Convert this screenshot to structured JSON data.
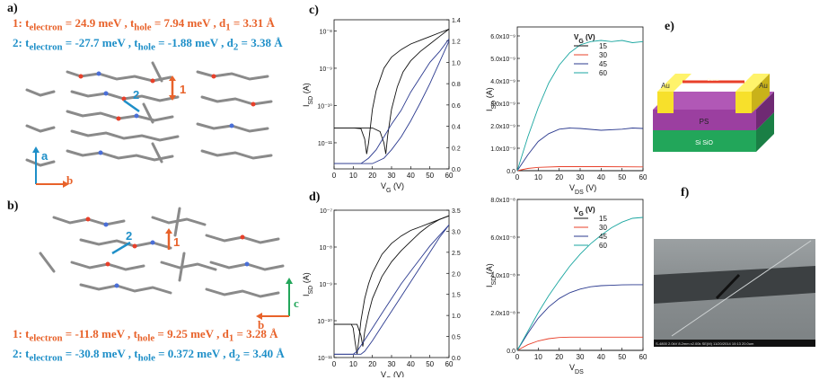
{
  "colors": {
    "orange": "#e8622a",
    "blue": "#1e8fc8",
    "teal": "#1aa6a0",
    "navy": "#2b3a8f",
    "red": "#e8402a",
    "black": "#111111",
    "purple": "#9b3fa0",
    "gold": "#f7e02b",
    "green": "#22a65a"
  },
  "panel_a": {
    "letter": "a)",
    "line1": {
      "num": "1:",
      "t_electron": "t",
      "sub_e": "electron",
      "val_e": "=  24.9 meV , ",
      "t_hole": "t",
      "sub_h": "hole",
      "val_h": "= 7.94 meV , d",
      "sub_d": "1",
      "val_d": "= 3.31 Å"
    },
    "line2": {
      "num": "2:",
      "t_electron": "t",
      "sub_e": "electron",
      "val_e": "= -27.7 meV , ",
      "t_hole": "t",
      "sub_h": "hole",
      "val_h": "= -1.88 meV , d",
      "sub_d": "2",
      "val_d": "= 3.38 Å"
    },
    "axis_a": "a",
    "axis_b": "b",
    "dimer1": "1",
    "dimer2": "2"
  },
  "panel_b": {
    "letter": "b)",
    "line1": {
      "num": "1:",
      "t_electron": "t",
      "sub_e": "electron",
      "val_e": "= -11.8 meV , ",
      "t_hole": "t",
      "sub_h": "hole",
      "val_h": "= 9.25 meV , d",
      "sub_d": "1",
      "val_d": "= 3.28 Å"
    },
    "line2": {
      "num": "2:",
      "t_electron": "t",
      "sub_e": "electron",
      "val_e": "= -30.8 meV , ",
      "t_hole": "t",
      "sub_h": "hole",
      "val_h": "= 0.372 meV , d",
      "sub_d": "2",
      "val_d": "= 3.40 Å"
    },
    "axis_b": "b",
    "axis_c": "c",
    "dimer1": "1",
    "dimer2": "2"
  },
  "panel_c_letter": "c)",
  "panel_d_letter": "d)",
  "panel_e_letter": "e)",
  "panel_f_letter": "f)",
  "device": {
    "electrode_left": "Au",
    "electrode_right": "Au",
    "dielectric": "PS",
    "substrate": "Si SiO",
    "channel_label": "Channel"
  },
  "sem_caption": "S-4800 2.0kV 8.2mm x2.00k SE(M) 11/20/2014 10:13        20.0um",
  "chart_data": [
    {
      "id": "c",
      "type": "line",
      "xlabel": "V",
      "xlabel_sub": "G",
      "xlabel_unit": " (V)",
      "ylabel": "I",
      "ylabel_sub": "SD",
      "ylabel_unit": " (A)",
      "y2label": "I",
      "y2label_sub": "SD",
      "y2label_sup": "1/2",
      "y2label_unit": " (10⁻³ A¹ᐟ²)",
      "xlim": [
        0,
        60
      ],
      "xticks": [
        "0",
        "10",
        "20",
        "30",
        "40",
        "50",
        "60"
      ],
      "ylog": true,
      "ylim_log": [
        -11.7,
        -7.7
      ],
      "yticks": [
        {
          "v": -8,
          "t": "10⁻⁸"
        },
        {
          "v": -9,
          "t": "10⁻⁹"
        },
        {
          "v": -10,
          "t": "10⁻¹⁰"
        },
        {
          "v": -11,
          "t": "10⁻¹¹"
        }
      ],
      "y2lim": [
        0,
        1.4
      ],
      "y2ticks": [
        "0.0",
        "0.2",
        "0.4",
        "0.6",
        "0.8",
        "1.0",
        "1.2",
        "1.4"
      ],
      "series": [
        {
          "color": "black",
          "axis": "left",
          "x": [
            0,
            10,
            14,
            16,
            17,
            18,
            20,
            22,
            26,
            30,
            35,
            40,
            45,
            50,
            55,
            60
          ],
          "y": [
            -10.6,
            -10.6,
            -10.62,
            -10.9,
            -11.3,
            -11.0,
            -10.1,
            -9.6,
            -9.0,
            -8.7,
            -8.5,
            -8.35,
            -8.25,
            -8.15,
            -8.05,
            -7.95
          ]
        },
        {
          "color": "black",
          "axis": "left",
          "x": [
            0,
            10,
            20,
            24,
            26,
            27,
            28,
            30,
            33,
            36,
            40,
            45,
            50,
            55,
            60
          ],
          "y": [
            -10.6,
            -10.6,
            -10.6,
            -10.7,
            -11.0,
            -11.3,
            -10.8,
            -10.1,
            -9.5,
            -9.1,
            -8.8,
            -8.55,
            -8.35,
            -8.15,
            -7.95
          ]
        },
        {
          "color": "navy",
          "axis": "right",
          "x": [
            0,
            14,
            18,
            22,
            26,
            30,
            35,
            40,
            45,
            50,
            55,
            60
          ],
          "y": [
            0.05,
            0.05,
            0.1,
            0.18,
            0.3,
            0.42,
            0.55,
            0.72,
            0.86,
            1.0,
            1.1,
            1.22
          ]
        },
        {
          "color": "navy",
          "axis": "right",
          "x": [
            0,
            20,
            26,
            30,
            35,
            40,
            45,
            50,
            55,
            60
          ],
          "y": [
            0.05,
            0.05,
            0.1,
            0.18,
            0.3,
            0.45,
            0.62,
            0.8,
            1.0,
            1.2
          ]
        }
      ]
    },
    {
      "id": "c_output",
      "type": "line",
      "xlabel": "V",
      "xlabel_sub": "DS",
      "xlabel_unit": " (V)",
      "ylabel": "I",
      "ylabel_sub": "SD",
      "ylabel_unit": " (A)",
      "xlim": [
        0,
        60
      ],
      "xticks": [
        "0",
        "10",
        "20",
        "30",
        "40",
        "50",
        "60"
      ],
      "ylim": [
        0,
        6.4e-09
      ],
      "yticks": [
        "0.0",
        "1.0x10⁻⁹",
        "2.0x10⁻⁹",
        "3.0x10⁻⁹",
        "4.0x10⁻⁹",
        "5.0x10⁻⁹",
        "6.0x10⁻⁹"
      ],
      "legend_title": "V",
      "legend_title_sub": "G",
      "legend_title_unit": " (V)",
      "series": [
        {
          "name": "15",
          "color": "black",
          "x": [
            0,
            20,
            40,
            60
          ],
          "y": [
            0,
            0,
            0,
            0
          ]
        },
        {
          "name": "30",
          "color": "red",
          "x": [
            0,
            5,
            10,
            20,
            40,
            60
          ],
          "y": [
            0,
            1e-10,
            1.5e-10,
            1.8e-10,
            1.8e-10,
            1.7e-10
          ]
        },
        {
          "name": "45",
          "color": "navy",
          "x": [
            0,
            5,
            10,
            15,
            20,
            25,
            30,
            40,
            50,
            55,
            60
          ],
          "y": [
            0,
            7e-10,
            1.3e-09,
            1.65e-09,
            1.85e-09,
            1.9e-09,
            1.88e-09,
            1.8e-09,
            1.85e-09,
            1.9e-09,
            1.88e-09
          ]
        },
        {
          "name": "60",
          "color": "teal",
          "x": [
            0,
            5,
            10,
            15,
            20,
            25,
            30,
            35,
            40,
            45,
            50,
            55,
            60
          ],
          "y": [
            0,
            1.5e-09,
            2.8e-09,
            3.9e-09,
            4.7e-09,
            5.25e-09,
            5.6e-09,
            5.75e-09,
            5.8e-09,
            5.75e-09,
            5.8e-09,
            5.7e-09,
            5.75e-09
          ]
        }
      ]
    },
    {
      "id": "d",
      "type": "line",
      "xlabel": "V",
      "xlabel_sub": "G",
      "xlabel_unit": " (V)",
      "ylabel": "I",
      "ylabel_sub": "SD",
      "ylabel_unit": " (A)",
      "y2label": "I",
      "y2label_sub": "SD",
      "y2label_sup": "1/2",
      "y2label_unit": " (10⁻⁴ A¹ᐟ²)",
      "xlim": [
        0,
        60
      ],
      "xticks": [
        "0",
        "10",
        "20",
        "30",
        "40",
        "50",
        "60"
      ],
      "ylog": true,
      "ylim_log": [
        -11,
        -7
      ],
      "yticks": [
        {
          "v": -7,
          "t": "10⁻⁷"
        },
        {
          "v": -8,
          "t": "10⁻⁸"
        },
        {
          "v": -9,
          "t": "10⁻⁹"
        },
        {
          "v": -10,
          "t": "10⁻¹⁰"
        },
        {
          "v": -11,
          "t": "10⁻¹¹"
        }
      ],
      "y2lim": [
        0,
        3.5
      ],
      "y2ticks": [
        "0.0",
        "0.5",
        "1.0",
        "1.5",
        "2.0",
        "2.5",
        "3.0",
        "3.5"
      ],
      "series": [
        {
          "color": "black",
          "axis": "left",
          "x": [
            0,
            9,
            10,
            11,
            12,
            13,
            14,
            16,
            18,
            20,
            25,
            30,
            35,
            40,
            45,
            50,
            55,
            60
          ],
          "y": [
            -10.1,
            -10.1,
            -10.2,
            -10.6,
            -10.9,
            -10.5,
            -10.0,
            -9.4,
            -9.0,
            -8.7,
            -8.2,
            -7.9,
            -7.7,
            -7.55,
            -7.45,
            -7.35,
            -7.25,
            -7.15
          ]
        },
        {
          "color": "black",
          "axis": "left",
          "x": [
            0,
            12,
            14,
            15,
            16,
            18,
            20,
            25,
            30,
            35,
            40,
            45,
            50,
            55,
            60
          ],
          "y": [
            -10.1,
            -10.1,
            -10.4,
            -10.7,
            -10.3,
            -9.8,
            -9.4,
            -8.8,
            -8.4,
            -8.1,
            -7.85,
            -7.6,
            -7.4,
            -7.25,
            -7.15
          ]
        },
        {
          "color": "navy",
          "axis": "right",
          "x": [
            0,
            10,
            12,
            15,
            20,
            25,
            30,
            35,
            40,
            45,
            50,
            55,
            60
          ],
          "y": [
            0.08,
            0.08,
            0.15,
            0.35,
            0.7,
            1.05,
            1.4,
            1.75,
            2.05,
            2.35,
            2.65,
            2.9,
            3.15
          ]
        },
        {
          "color": "navy",
          "axis": "right",
          "x": [
            0,
            14,
            16,
            20,
            25,
            30,
            35,
            40,
            45,
            50,
            55,
            60
          ],
          "y": [
            0.08,
            0.08,
            0.15,
            0.4,
            0.75,
            1.1,
            1.45,
            1.8,
            2.15,
            2.5,
            2.85,
            3.15
          ]
        }
      ]
    },
    {
      "id": "d_output",
      "type": "line",
      "xlabel": "V",
      "xlabel_sub": "DS",
      "xlabel_unit": "",
      "ylabel": "I",
      "ylabel_sub": "SD",
      "ylabel_unit": " (A)",
      "xlim": [
        0,
        60
      ],
      "xticks": [
        "0",
        "10",
        "20",
        "30",
        "40",
        "50",
        "60"
      ],
      "ylim": [
        0,
        8e-08
      ],
      "yticks": [
        "0.0",
        "2.0x10⁻⁸",
        "4.0x10⁻⁸",
        "6.0x10⁻⁸",
        "8.0x10⁻⁸"
      ],
      "legend_title": "V",
      "legend_title_sub": "G",
      "legend_title_unit": " (V)",
      "series": [
        {
          "name": "15",
          "color": "black",
          "x": [
            0,
            20,
            40,
            60
          ],
          "y": [
            0,
            0,
            0,
            0
          ]
        },
        {
          "name": "30",
          "color": "red",
          "x": [
            0,
            5,
            10,
            15,
            20,
            25,
            30,
            40,
            50,
            60
          ],
          "y": [
            0,
            3e-09,
            5e-09,
            6.2e-09,
            6.8e-09,
            7e-09,
            7e-09,
            7e-09,
            7e-09,
            7e-09
          ]
        },
        {
          "name": "45",
          "color": "navy",
          "x": [
            0,
            5,
            10,
            15,
            20,
            25,
            30,
            35,
            40,
            45,
            50,
            55,
            60
          ],
          "y": [
            0,
            9e-09,
            1.7e-08,
            2.3e-08,
            2.75e-08,
            3.05e-08,
            3.25e-08,
            3.37e-08,
            3.43e-08,
            3.45e-08,
            3.47e-08,
            3.48e-08,
            3.48e-08
          ]
        },
        {
          "name": "60",
          "color": "teal",
          "x": [
            0,
            5,
            10,
            15,
            20,
            25,
            30,
            35,
            40,
            45,
            50,
            55,
            60
          ],
          "y": [
            0,
            1e-08,
            2e-08,
            2.9e-08,
            3.7e-08,
            4.45e-08,
            5.1e-08,
            5.65e-08,
            6.1e-08,
            6.5e-08,
            6.8e-08,
            7e-08,
            7.05e-08
          ]
        }
      ]
    }
  ]
}
